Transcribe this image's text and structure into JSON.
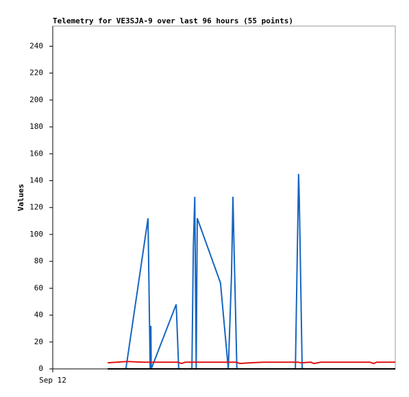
{
  "chart_data": {
    "type": "line",
    "title": "Telemetry for VE3SJA-9 over last 96 hours (55 points)",
    "y_label": "Values",
    "xlim": [
      0,
      96
    ],
    "xticks": [
      {
        "value": 0,
        "label": "Sep 12"
      }
    ],
    "ylim": [
      0,
      255
    ],
    "yticks": [
      0,
      20,
      40,
      60,
      80,
      100,
      120,
      140,
      160,
      180,
      200,
      220,
      240
    ],
    "series": [
      {
        "color": "#1565c0",
        "x": [
          20.5,
          26.7,
          27.3,
          27.5,
          27.6,
          34.6,
          35.3,
          39.0,
          39.4,
          39.8,
          40.2,
          40.5,
          47.0,
          49.2,
          50.1,
          50.5,
          50.9,
          51.6,
          68.0,
          68.9,
          69.1,
          69.9
        ],
        "values": [
          0,
          112,
          0,
          32,
          0,
          48,
          0,
          0,
          90,
          128,
          0,
          112,
          64,
          0,
          70,
          128,
          80,
          0,
          0,
          145,
          126,
          0
        ]
      },
      {
        "color": "#e01010",
        "x": [
          15.4,
          20.8,
          25.5,
          35.1,
          36.1,
          37.1,
          51.5,
          52.4,
          55.3,
          59.1,
          68.7,
          69.7,
          72.3,
          73.2,
          75.1,
          88.9,
          89.9,
          90.8,
          96.0
        ],
        "values": [
          4.5,
          5.5,
          5,
          5,
          4,
          5,
          5,
          4,
          4.5,
          5,
          5,
          4.5,
          5,
          4,
          5,
          5,
          4,
          5,
          5
        ]
      },
      {
        "color": "#000000",
        "x": [
          15.4,
          96.0
        ],
        "values": [
          0,
          0
        ]
      }
    ]
  }
}
